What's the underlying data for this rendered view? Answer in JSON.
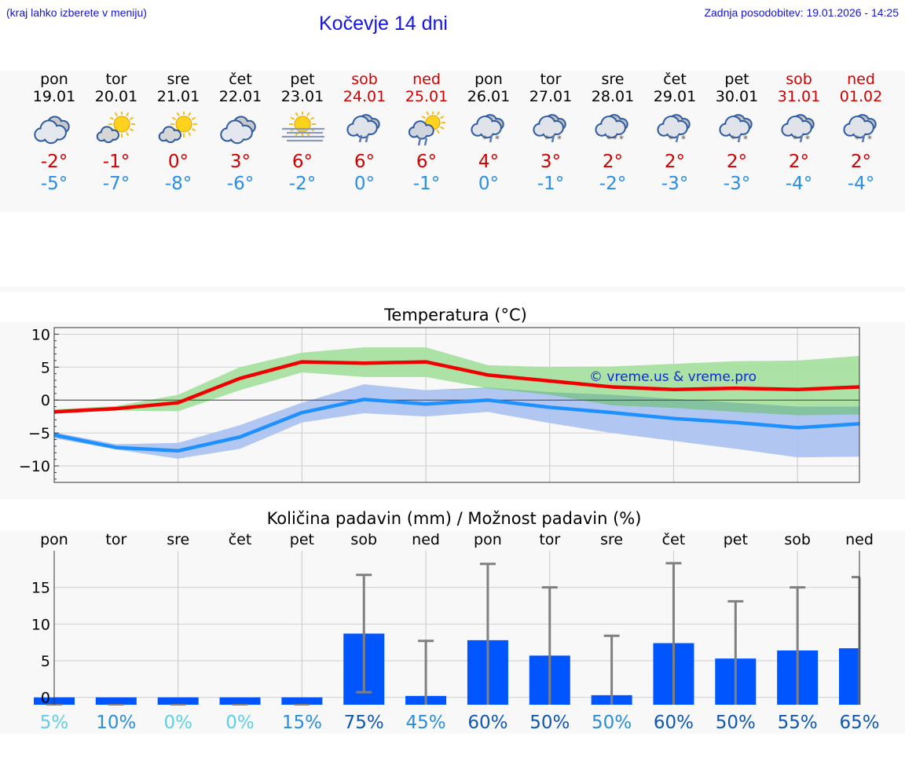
{
  "header": {
    "menu_hint": "(kraj lahko izberete v meniju)",
    "title": "Kočevje 14 dni",
    "updated": "Zadnja posodobitev: 19.01.2026 - 14:25"
  },
  "days": [
    {
      "name": "pon",
      "date": "19.01",
      "icon": "cloudy-icon",
      "tmax": "-2°",
      "tmin": "-5°",
      "weekend": false
    },
    {
      "name": "tor",
      "date": "20.01",
      "icon": "sun-cloud-icon",
      "tmax": "-1°",
      "tmin": "-7°",
      "weekend": false
    },
    {
      "name": "sre",
      "date": "21.01",
      "icon": "sun-cloud-icon",
      "tmax": "0°",
      "tmin": "-8°",
      "weekend": false
    },
    {
      "name": "čet",
      "date": "22.01",
      "icon": "cloudy-icon",
      "tmax": "3°",
      "tmin": "-6°",
      "weekend": false
    },
    {
      "name": "pet",
      "date": "23.01",
      "icon": "sun-fog-icon",
      "tmax": "6°",
      "tmin": "-2°",
      "weekend": false
    },
    {
      "name": "sob",
      "date": "24.01",
      "icon": "rain-icon",
      "tmax": "6°",
      "tmin": "0°",
      "weekend": true
    },
    {
      "name": "ned",
      "date": "25.01",
      "icon": "sun-rain-icon",
      "tmax": "6°",
      "tmin": "-1°",
      "weekend": true
    },
    {
      "name": "pon",
      "date": "26.01",
      "icon": "sleet-icon",
      "tmax": "4°",
      "tmin": "0°",
      "weekend": false
    },
    {
      "name": "tor",
      "date": "27.01",
      "icon": "sleet-icon",
      "tmax": "3°",
      "tmin": "-1°",
      "weekend": false
    },
    {
      "name": "sre",
      "date": "28.01",
      "icon": "snow-icon",
      "tmax": "2°",
      "tmin": "-2°",
      "weekend": false
    },
    {
      "name": "čet",
      "date": "29.01",
      "icon": "sleet-icon",
      "tmax": "2°",
      "tmin": "-3°",
      "weekend": false
    },
    {
      "name": "pet",
      "date": "30.01",
      "icon": "sleet-icon",
      "tmax": "2°",
      "tmin": "-3°",
      "weekend": false
    },
    {
      "name": "sob",
      "date": "31.01",
      "icon": "sleet-icon",
      "tmax": "2°",
      "tmin": "-4°",
      "weekend": true
    },
    {
      "name": "ned",
      "date": "01.02",
      "icon": "sleet-icon",
      "tmax": "2°",
      "tmin": "-4°",
      "weekend": true
    }
  ],
  "colors": {
    "max_line": "#f00000",
    "min_line": "#1e90ff",
    "max_band": "#a8e0a0",
    "min_band": "#adc3f0",
    "overlap_band": "#7fbfa0",
    "bar": "#0055ff",
    "err": "#808080",
    "weekend": "#d00000"
  },
  "chart_data": [
    {
      "type": "line",
      "title": "Temperatura (°C)",
      "watermark": "© vreme.us & vreme.pro",
      "ylim": [
        -12.5,
        11
      ],
      "yticks": [
        10,
        5,
        0,
        -5,
        -10
      ],
      "ytick_labels": [
        "10",
        "5",
        "0",
        "−5",
        "−10"
      ],
      "x": [
        0,
        1,
        2,
        3,
        4,
        5,
        6,
        7,
        8,
        9,
        10,
        11,
        12,
        13
      ],
      "series": [
        {
          "name": "max",
          "values": [
            -1.8,
            -1.3,
            -0.4,
            3.3,
            5.8,
            5.6,
            5.8,
            3.8,
            2.9,
            2.0,
            1.6,
            1.8,
            1.6,
            2.0
          ]
        },
        {
          "name": "min",
          "values": [
            -5.3,
            -7.2,
            -7.7,
            -5.6,
            -1.9,
            0.1,
            -0.6,
            0.0,
            -1.1,
            -1.9,
            -2.8,
            -3.4,
            -4.2,
            -3.6
          ]
        }
      ],
      "bands": [
        {
          "name": "max_range",
          "low": [
            -2.0,
            -1.6,
            -1.7,
            1.5,
            4.2,
            3.5,
            3.5,
            1.8,
            0.8,
            -0.8,
            -1.2,
            -1.8,
            -2.3,
            -2.2
          ],
          "high": [
            -1.4,
            -0.9,
            0.8,
            5.0,
            7.2,
            8.0,
            8.0,
            5.3,
            5.0,
            5.1,
            5.5,
            5.9,
            6.0,
            6.7
          ]
        },
        {
          "name": "min_range",
          "low": [
            -5.8,
            -7.5,
            -8.9,
            -7.4,
            -3.4,
            -2.0,
            -2.5,
            -1.8,
            -3.5,
            -5.0,
            -6.2,
            -7.4,
            -8.7,
            -8.6
          ],
          "high": [
            -4.9,
            -6.7,
            -6.5,
            -3.8,
            -0.4,
            2.4,
            1.5,
            1.9,
            1.2,
            0.8,
            0.2,
            -0.4,
            -1.0,
            -1.0
          ]
        }
      ]
    },
    {
      "type": "bar",
      "title": "Količina padavin (mm) / Možnost padavin (%)",
      "ylim": [
        -1,
        20
      ],
      "yticks": [
        15,
        10,
        5,
        0
      ],
      "categories": [
        "pon",
        "tor",
        "sre",
        "čet",
        "pet",
        "sob",
        "ned",
        "pon",
        "tor",
        "sre",
        "čet",
        "pet",
        "sob",
        "ned"
      ],
      "values": [
        0,
        0,
        0,
        0,
        0,
        8.7,
        0.2,
        7.8,
        5.7,
        0.3,
        7.4,
        5.3,
        6.4,
        6.7
      ],
      "err_low": [
        0,
        0,
        0,
        0,
        0,
        0.7,
        0,
        0,
        0,
        0,
        0,
        0,
        0,
        0
      ],
      "err_high": [
        0,
        0,
        0,
        0,
        0,
        16.7,
        7.7,
        18.2,
        15.0,
        8.4,
        18.3,
        13.1,
        15.0,
        16.4
      ],
      "probabilities": [
        "5%",
        "10%",
        "0%",
        "0%",
        "15%",
        "75%",
        "45%",
        "60%",
        "50%",
        "50%",
        "60%",
        "50%",
        "55%",
        "65%"
      ],
      "prob_colors": [
        "#5dcfe6",
        "#2a8ed8",
        "#5dcfe6",
        "#5dcfe6",
        "#2a8ed8",
        "#1057b0",
        "#2a8ed8",
        "#1057b0",
        "#1057b0",
        "#2a8ed8",
        "#1057b0",
        "#1057b0",
        "#1057b0",
        "#1057b0"
      ]
    }
  ]
}
